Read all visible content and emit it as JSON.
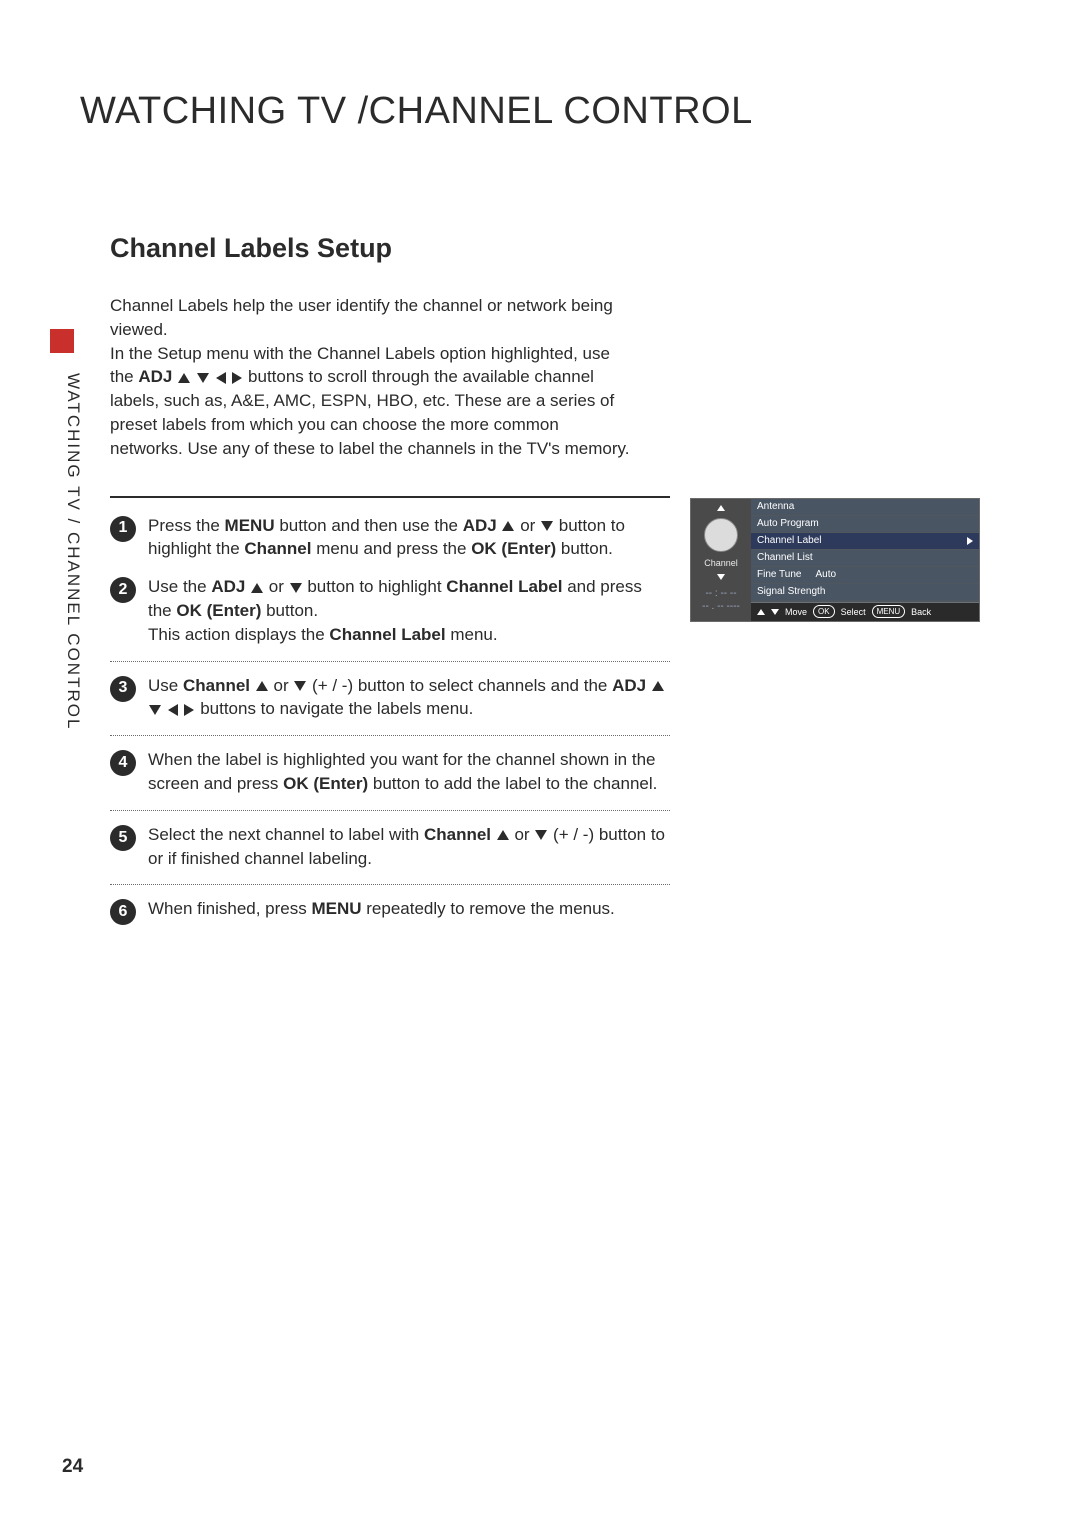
{
  "page_number": "24",
  "chapter_title": "WATCHING TV /CHANNEL CONTROL",
  "side_label": "WATCHING TV / CHANNEL CONTROL",
  "section_title": "Channel Labels Setup",
  "accent_color": "#c9302c",
  "intro_p1": "Channel Labels help the user identify the channel or network being viewed.",
  "intro_p2_a": "In the Setup menu with the Channel Labels option highlighted, use the ",
  "intro_p2_adj": "ADJ",
  "intro_p2_b": " buttons to scroll through the available channel labels, such as, A&E, AMC, ESPN, HBO, etc. These are a series of preset labels from which you can choose the more common networks. Use any of these to label the channels in the TV's memory.",
  "steps": {
    "s1_a": "Press the ",
    "s1_menu": "MENU",
    "s1_b": " button and then use the ",
    "s1_adj": "ADJ",
    "s1_c": " or ",
    "s1_d": " button to highlight the ",
    "s1_channel": "Channel",
    "s1_e": " menu and press the ",
    "s1_ok": "OK (Enter)",
    "s1_f": " button.",
    "s2_a": "Use the ",
    "s2_adj": "ADJ",
    "s2_b": " or ",
    "s2_c": " button to highlight ",
    "s2_cl": "Channel Label",
    "s2_d": " and press the ",
    "s2_ok": "OK (Enter)",
    "s2_e": " button.",
    "s2_f": "This action displays the ",
    "s2_cl2": "Channel Label",
    "s2_g": " menu.",
    "s3_a": "Use ",
    "s3_ch": "Channel",
    "s3_b": " or ",
    "s3_c": " (+ / -) button to select channels and the ",
    "s3_adj": "ADJ",
    "s3_d": " buttons to navigate the labels menu.",
    "s4_a": "When the label is highlighted you want for the channel shown in the screen and press ",
    "s4_ok": "OK (Enter)",
    "s4_b": " button to add the label to the channel.",
    "s5_a": "Select the next channel to label with ",
    "s5_ch": "Channel",
    "s5_b": " or ",
    "s5_c": " (+ / -) button to or if finished channel labeling.",
    "s6_a": "When finished, press ",
    "s6_menu": "MENU",
    "s6_b": " repeatedly to remove the menus."
  },
  "menu": {
    "icon_label": "Channel",
    "time_placeholder_1": "-- : -- --",
    "time_placeholder_2": "-- . --  ----",
    "items": [
      {
        "label": "Antenna",
        "value": ""
      },
      {
        "label": "Auto Program",
        "value": ""
      },
      {
        "label": "Channel Label",
        "value": "",
        "selected": true
      },
      {
        "label": "Channel List",
        "value": ""
      },
      {
        "label": "Fine Tune",
        "value": "Auto"
      },
      {
        "label": "Signal Strength",
        "value": ""
      }
    ],
    "footer": {
      "move": "Move",
      "ok": "OK",
      "select": "Select",
      "menu": "MENU",
      "back": "Back"
    }
  }
}
